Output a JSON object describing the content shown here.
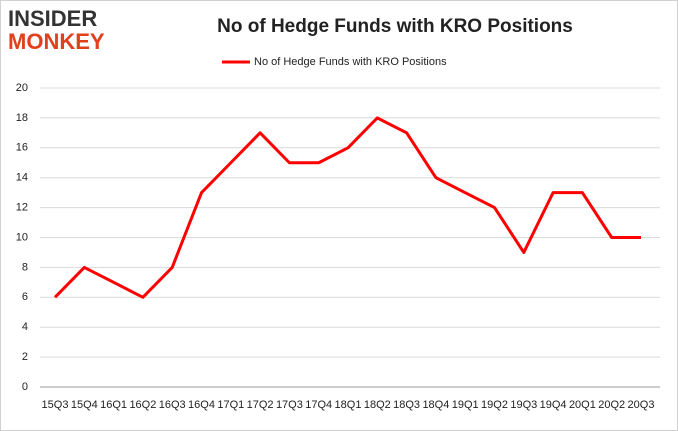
{
  "logo": {
    "line1": "INSIDER",
    "line2": "MONKEY"
  },
  "chart_data": {
    "type": "line",
    "title": "No of Hedge Funds with KRO Positions",
    "categories": [
      "15Q3",
      "15Q4",
      "16Q1",
      "16Q2",
      "16Q3",
      "16Q4",
      "17Q1",
      "17Q2",
      "17Q3",
      "17Q4",
      "18Q1",
      "18Q2",
      "18Q3",
      "18Q4",
      "19Q1",
      "19Q2",
      "19Q3",
      "19Q4",
      "20Q1",
      "20Q2",
      "20Q3"
    ],
    "series": [
      {
        "name": "No of Hedge Funds with KRO Positions",
        "color": "#ff0000",
        "values": [
          6,
          8,
          7,
          6,
          8,
          13,
          15,
          17,
          15,
          15,
          16,
          18,
          17,
          14,
          13,
          12,
          9,
          13,
          13,
          10,
          10
        ]
      }
    ],
    "ylim": [
      0,
      20
    ],
    "yticks": [
      0,
      2,
      4,
      6,
      8,
      10,
      12,
      14,
      16,
      18,
      20
    ],
    "grid": true
  }
}
